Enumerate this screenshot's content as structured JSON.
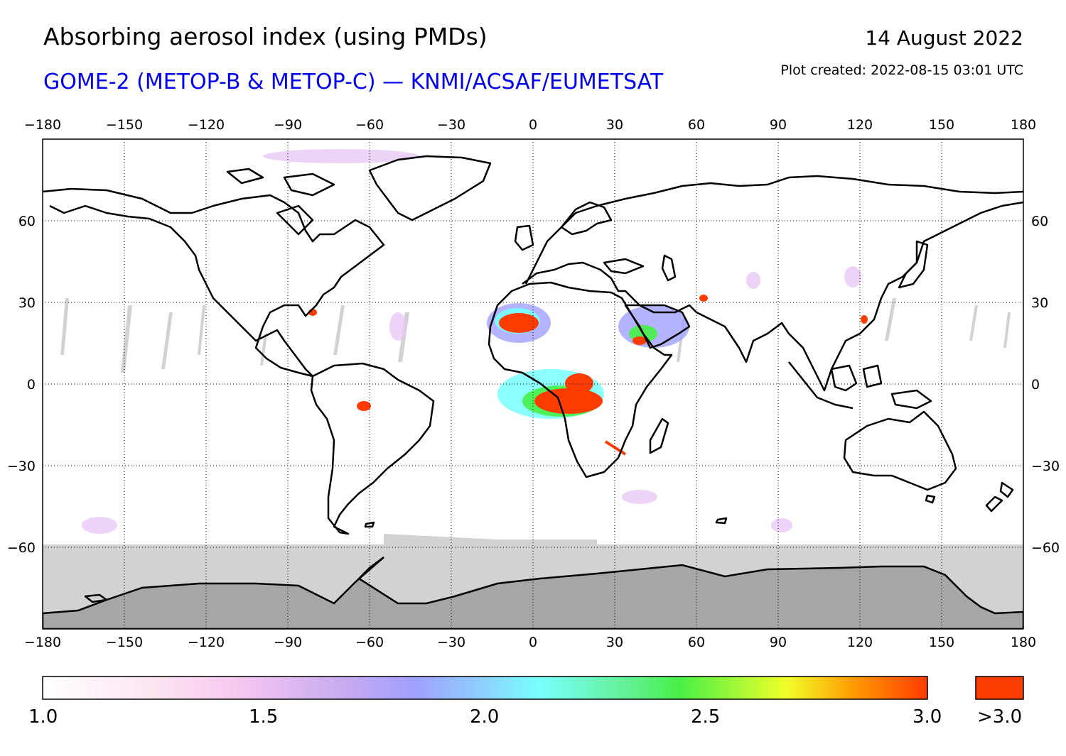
{
  "header": {
    "title": "Absorbing aerosol index (using PMDs)",
    "subtitle": "GOME-2 (METOP-B & METOP-C) — KNMI/ACSAF/EUMETSAT",
    "date": "14 August 2022",
    "created": "Plot created: 2022-08-15 03:01 UTC"
  },
  "axes": {
    "lon_ticks": [
      "−180",
      "−150",
      "−120",
      "−90",
      "−60",
      "−30",
      "0",
      "30",
      "60",
      "90",
      "120",
      "150",
      "180"
    ],
    "lat_ticks": [
      "60",
      "30",
      "0",
      "−30",
      "−60"
    ],
    "lon_range": [
      -180,
      180
    ],
    "lat_range": [
      -90,
      90
    ]
  },
  "colorbar": {
    "labels": [
      "1.0",
      "1.5",
      "2.0",
      "2.5",
      "3.0"
    ],
    "overflow_label": ">3.0",
    "range": [
      1.0,
      3.0
    ],
    "overflow_color": "#ff3c00"
  },
  "colors": {
    "no_data": "#d2d2d2",
    "antarctica": "#a6a6a6",
    "coastline": "#000000",
    "high_aai": "#ff3c00"
  }
}
